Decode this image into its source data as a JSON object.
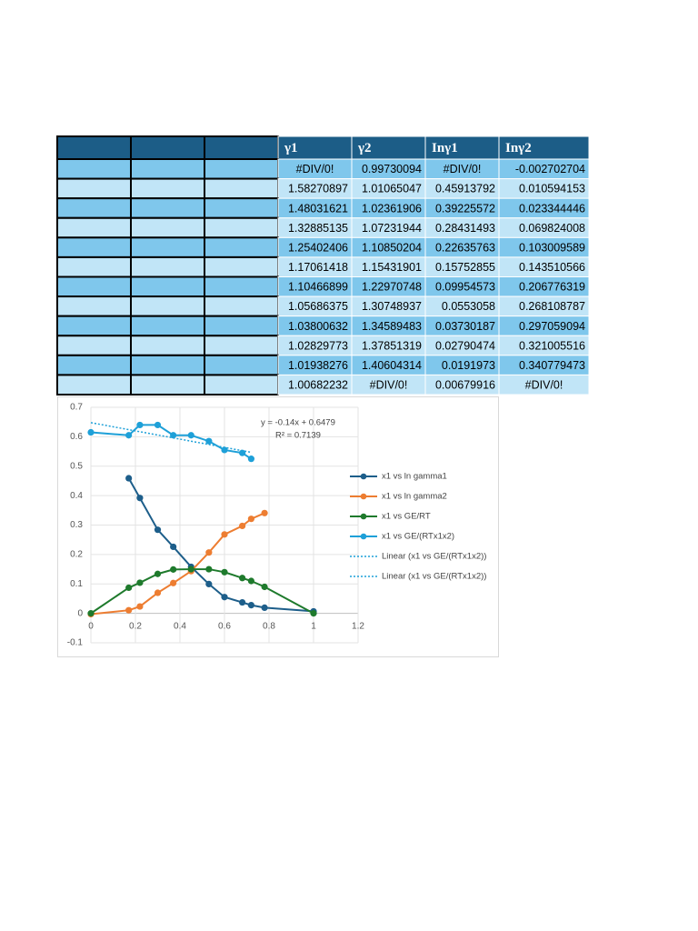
{
  "table": {
    "header": [
      "γ1",
      "γ2",
      "Inγ1",
      "Inγ2"
    ],
    "rows": [
      [
        "#DIV/0!",
        "0.99730094",
        "#DIV/0!",
        "-0.002702704"
      ],
      [
        "1.58270897",
        "1.01065047",
        "0.45913792",
        "0.010594153"
      ],
      [
        "1.48031621",
        "1.02361906",
        "0.39225572",
        "0.023344446"
      ],
      [
        "1.32885135",
        "1.07231944",
        "0.28431493",
        "0.069824008"
      ],
      [
        "1.25402406",
        "1.10850204",
        "0.22635763",
        "0.103009589"
      ],
      [
        "1.17061418",
        "1.15431901",
        "0.15752855",
        "0.143510566"
      ],
      [
        "1.10466899",
        "1.22970748",
        "0.09954573",
        "0.206776319"
      ],
      [
        "1.05686375",
        "1.30748937",
        "0.0553058",
        "0.268108787"
      ],
      [
        "1.03800632",
        "1.34589483",
        "0.03730187",
        "0.297059094"
      ],
      [
        "1.02829773",
        "1.37851319",
        "0.02790474",
        "0.321005516"
      ],
      [
        "1.01938276",
        "1.40604314",
        "0.0191973",
        "0.340779473"
      ],
      [
        "1.00682232",
        "#DIV/0!",
        "0.00679916",
        "#DIV/0!"
      ]
    ]
  },
  "chart_data": {
    "type": "line",
    "x": [
      0,
      0.17,
      0.22,
      0.3,
      0.37,
      0.45,
      0.53,
      0.6,
      0.68,
      0.72,
      0.78,
      1
    ],
    "series": [
      {
        "name": "x1 vs ln gamma1",
        "color": "#1d5e8a",
        "values": [
          null,
          0.459,
          0.392,
          0.284,
          0.226,
          0.158,
          0.0995,
          0.0553,
          0.0373,
          0.0279,
          0.0192,
          0.0068
        ]
      },
      {
        "name": "x1 vs ln gamma2",
        "color": "#ed7d31",
        "values": [
          -0.0027,
          0.0106,
          0.0233,
          0.0698,
          0.103,
          0.1435,
          0.2068,
          0.2681,
          0.2971,
          0.321,
          0.3408,
          null
        ]
      },
      {
        "name": "x1 vs GE/RT",
        "color": "#1e7a2c",
        "values": [
          0,
          0.087,
          0.104,
          0.134,
          0.149,
          0.15,
          0.15,
          0.14,
          0.12,
          0.11,
          0.09,
          0
        ]
      },
      {
        "name": "x1 vs GE/(RTx1x2)",
        "color": "#1ea0d8",
        "values": [
          0.615,
          0.605,
          0.64,
          0.64,
          0.605,
          0.605,
          0.585,
          0.555,
          0.545,
          0.525,
          null,
          null
        ]
      }
    ],
    "trendline": {
      "name": "Linear (x1 vs GE/(RTx1x2))",
      "slope": -0.14,
      "intercept": 0.6479,
      "equation": "y = -0.14x + 0.6479",
      "r2": "R² = 0.7139",
      "color": "#1ea0d8"
    },
    "xlim": [
      0,
      1.2
    ],
    "xticks": [
      0,
      0.2,
      0.4,
      0.6,
      0.8,
      1,
      1.2
    ],
    "ylim": [
      -0.1,
      0.7
    ],
    "yticks": [
      -0.1,
      0,
      0.1,
      0.2,
      0.3,
      0.4,
      0.5,
      0.6,
      0.7
    ],
    "grid": true
  }
}
